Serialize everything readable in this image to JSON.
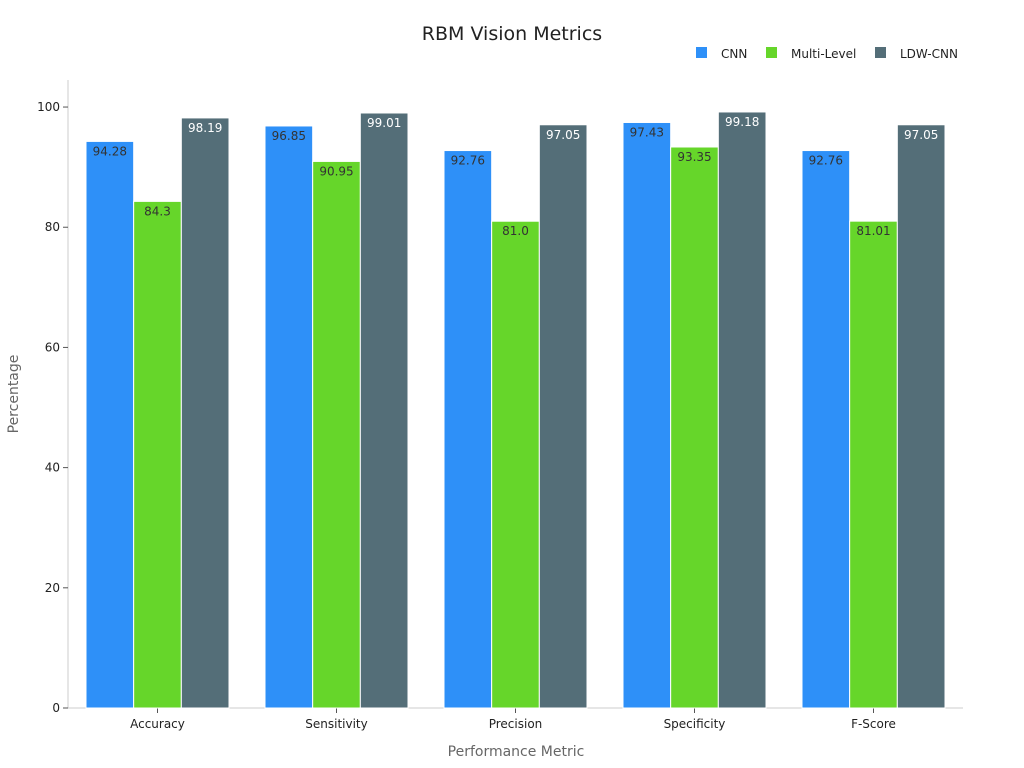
{
  "chart_data": {
    "type": "bar",
    "title": "RBM Vision Metrics",
    "xlabel": "Performance Metric",
    "ylabel": "Percentage",
    "categories": [
      "Accuracy",
      "Sensitivity",
      "Precision",
      "Specificity",
      "F-Score"
    ],
    "series": [
      {
        "name": "CNN",
        "color": "#2e90f8",
        "label_color": "#333333",
        "values": [
          94.28,
          96.85,
          92.76,
          97.43,
          92.76
        ]
      },
      {
        "name": "Multi-Level",
        "color": "#66d62a",
        "label_color": "#333333",
        "values": [
          84.3,
          90.95,
          81.0,
          93.35,
          81.01
        ]
      },
      {
        "name": "LDW-CNN",
        "color": "#546e78",
        "label_color": "#ffffff",
        "values": [
          98.19,
          99.01,
          97.05,
          99.18,
          97.05
        ]
      }
    ],
    "value_labels": [
      [
        "94.28",
        "96.85",
        "92.76",
        "97.43",
        "92.76"
      ],
      [
        "84.3",
        "90.95",
        "81.0",
        "93.35",
        "81.01"
      ],
      [
        "98.19",
        "99.01",
        "97.05",
        "99.18",
        "97.05"
      ]
    ],
    "ylim": [
      0,
      104.5
    ],
    "yticks": [
      0,
      20,
      40,
      60,
      80,
      100
    ],
    "ytick_labels": [
      "0",
      "20",
      "40",
      "60",
      "80",
      "100"
    ],
    "grid": false,
    "legend": "top-right"
  }
}
